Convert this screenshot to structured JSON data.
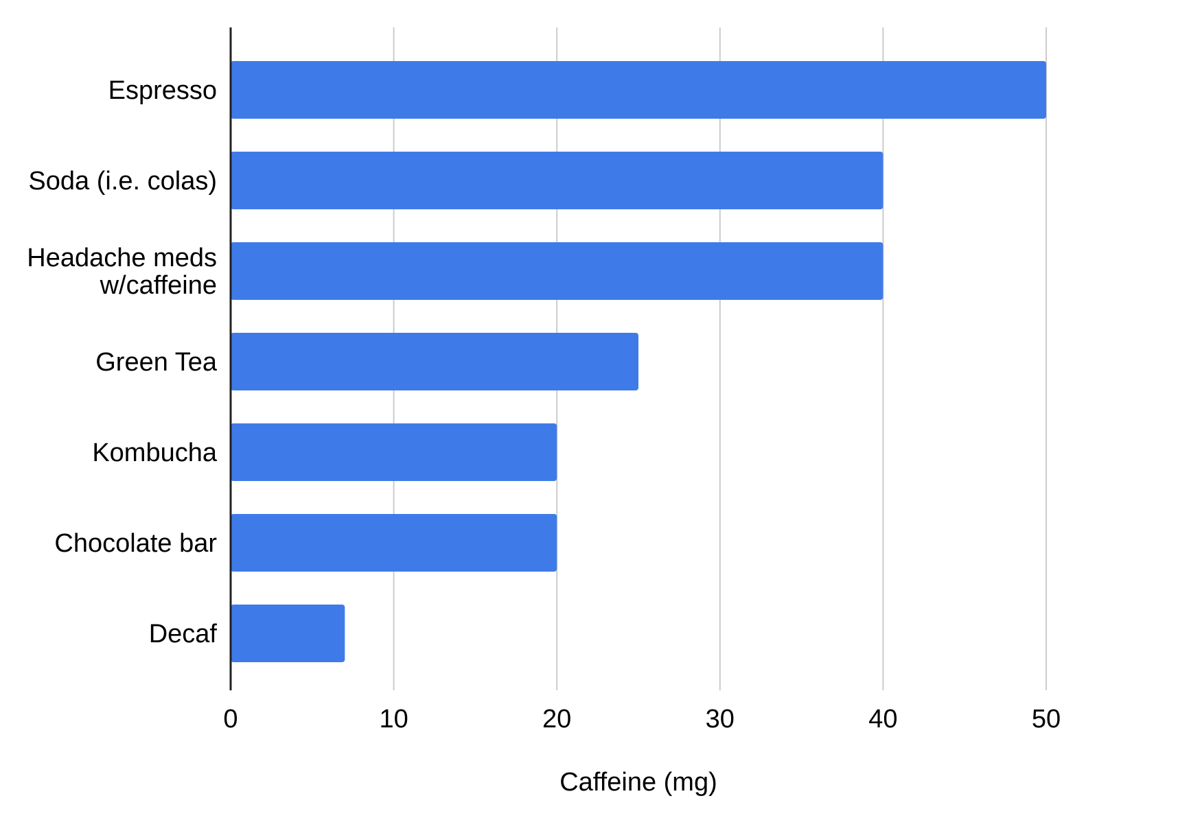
{
  "chart_data": {
    "type": "bar",
    "orientation": "horizontal",
    "title": "",
    "xlabel": "Caffeine (mg)",
    "ylabel": "",
    "categories": [
      "Espresso",
      "Soda (i.e. colas)",
      "Headache meds w/caffeine",
      "Green Tea",
      "Kombucha",
      "Chocolate bar",
      "Decaf"
    ],
    "category_lines": [
      [
        "Espresso"
      ],
      [
        "Soda (i.e. colas)"
      ],
      [
        "Headache meds",
        "w/caffeine"
      ],
      [
        "Green Tea"
      ],
      [
        "Kombucha"
      ],
      [
        "Chocolate bar"
      ],
      [
        "Decaf"
      ]
    ],
    "values": [
      50,
      40,
      40,
      25,
      20,
      20,
      7
    ],
    "xlim": [
      0,
      50
    ],
    "xticks": [
      0,
      10,
      20,
      30,
      40,
      50
    ],
    "grid": true,
    "legend": "none",
    "bar_color": "#3f7be8",
    "grid_color": "#cccccc",
    "axis_color": "#222222"
  }
}
